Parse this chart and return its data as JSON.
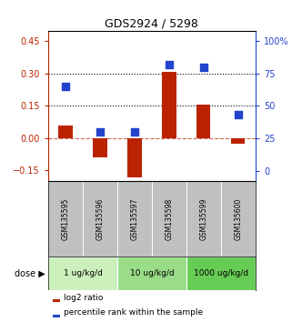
{
  "title": "GDS2924 / 5298",
  "samples": [
    "GSM135595",
    "GSM135596",
    "GSM135597",
    "GSM135598",
    "GSM135599",
    "GSM135600"
  ],
  "log2_ratio": [
    0.06,
    -0.09,
    -0.18,
    0.31,
    0.155,
    -0.025
  ],
  "percentile_rank": [
    65,
    30,
    30,
    82,
    80,
    43
  ],
  "doses": [
    {
      "label": "1 ug/kg/d",
      "samples": [
        0,
        1
      ],
      "color": "#ccf0bb"
    },
    {
      "label": "10 ug/kg/d",
      "samples": [
        2,
        3
      ],
      "color": "#99dd88"
    },
    {
      "label": "1000 ug/kg/d",
      "samples": [
        4,
        5
      ],
      "color": "#66cc55"
    }
  ],
  "ylim_left": [
    -0.2,
    0.5
  ],
  "ylim_right": [
    -8.0,
    108.0
  ],
  "yticks_left": [
    -0.15,
    0.0,
    0.15,
    0.3,
    0.45
  ],
  "yticks_right": [
    0,
    25,
    50,
    75,
    100
  ],
  "hlines": [
    0.15,
    0.3
  ],
  "bar_color": "#bb2200",
  "dot_color": "#2244cc",
  "bar_width": 0.4,
  "dot_size": 40,
  "left_tick_color": "#bb2200",
  "right_tick_color": "#2244cc",
  "background_color": "#ffffff",
  "plot_bg_color": "#ffffff",
  "sample_bg_color": "#c0c0c0",
  "legend_bar_label": "log2 ratio",
  "legend_dot_label": "percentile rank within the sample",
  "dose_label": "dose"
}
